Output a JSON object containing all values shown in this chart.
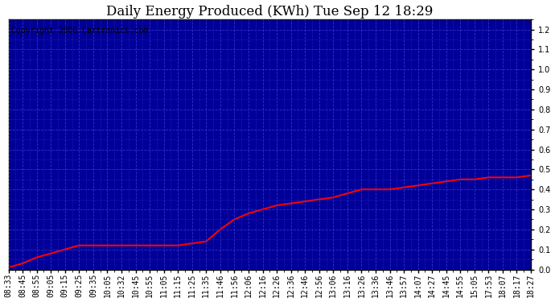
{
  "title": "Daily Energy Produced (KWh) Tue Sep 12 18:29",
  "copyright": "Copyright 2006 Cartronics.com",
  "fig_bg_color": "#ffffff",
  "plot_bg_color": "#000099",
  "line_color": "#ff0000",
  "grid_color": "#3333cc",
  "title_color": "#000000",
  "tick_color": "#000000",
  "copyright_color": "#000000",
  "border_color": "#000000",
  "ylim": [
    0.0,
    1.25
  ],
  "yticks": [
    0.0,
    0.1,
    0.2,
    0.3,
    0.4,
    0.5,
    0.6,
    0.7,
    0.8,
    0.9,
    1.0,
    1.1,
    1.2
  ],
  "x_labels": [
    "08:33",
    "08:45",
    "08:55",
    "09:05",
    "09:15",
    "09:25",
    "09:35",
    "10:05",
    "10:32",
    "10:45",
    "10:55",
    "11:05",
    "11:15",
    "11:25",
    "11:35",
    "11:46",
    "11:56",
    "12:06",
    "12:16",
    "12:26",
    "12:36",
    "12:46",
    "12:56",
    "13:06",
    "13:16",
    "13:26",
    "13:36",
    "13:46",
    "13:57",
    "14:07",
    "14:27",
    "14:45",
    "14:55",
    "15:05",
    "17:53",
    "18:07",
    "18:17",
    "18:27"
  ],
  "data_x": [
    0,
    1,
    2,
    3,
    4,
    5,
    6,
    7,
    8,
    9,
    10,
    11,
    12,
    13,
    14,
    15,
    16,
    17,
    18,
    19,
    20,
    21,
    22,
    23,
    24,
    25,
    26,
    27,
    28,
    29,
    30,
    31,
    32,
    33,
    34,
    35,
    36,
    37
  ],
  "data_y": [
    0.01,
    0.03,
    0.06,
    0.08,
    0.1,
    0.12,
    0.12,
    0.12,
    0.12,
    0.12,
    0.12,
    0.12,
    0.12,
    0.13,
    0.14,
    0.2,
    0.25,
    0.28,
    0.3,
    0.32,
    0.33,
    0.34,
    0.35,
    0.36,
    0.38,
    0.4,
    0.4,
    0.4,
    0.41,
    0.42,
    0.43,
    0.44,
    0.45,
    0.45,
    0.46,
    0.46,
    0.46,
    0.47
  ],
  "title_fontsize": 12,
  "copyright_fontsize": 7,
  "tick_fontsize": 7,
  "line_width": 1.5
}
